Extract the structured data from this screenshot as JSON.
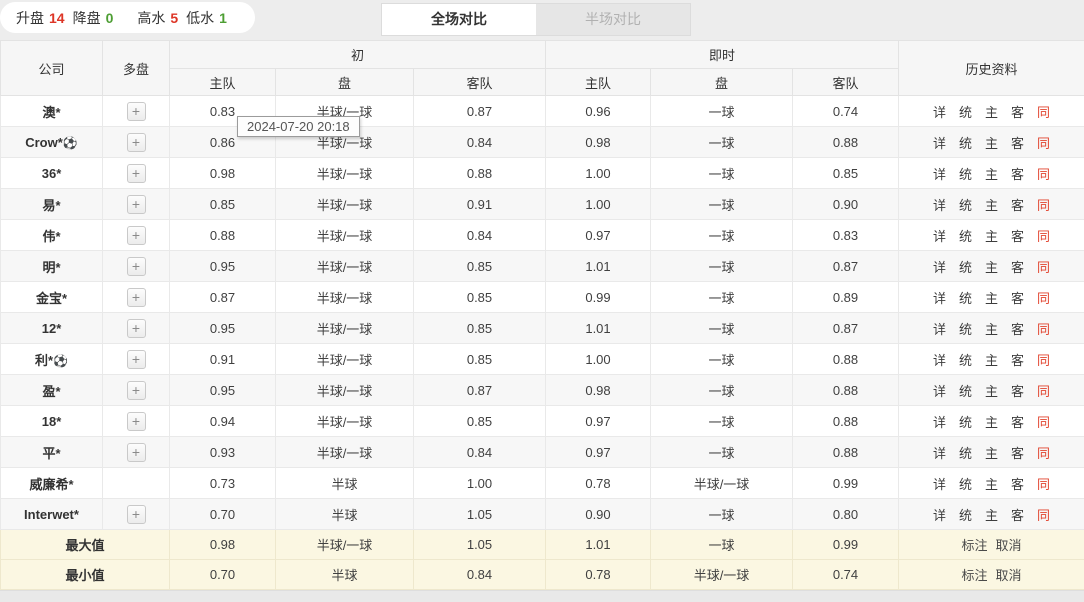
{
  "summary_bar": {
    "items": [
      {
        "label": "升盘",
        "value": "14",
        "color": "#dd3526"
      },
      {
        "label": "降盘",
        "value": "0",
        "color": "#4d9e33"
      },
      {
        "label": "高水",
        "value": "5",
        "color": "#dd3526"
      },
      {
        "label": "低水",
        "value": "1",
        "color": "#4d9e33"
      }
    ]
  },
  "tabs": {
    "full": {
      "label": "全场对比",
      "active": true
    },
    "half": {
      "label": "半场对比",
      "active": false
    }
  },
  "tooltip": {
    "text": "2024-07-20 20:18"
  },
  "table": {
    "headers": {
      "company": "公司",
      "multi": "多盘",
      "initial_group": "初",
      "live_group": "即时",
      "home": "主队",
      "handicap": "盘",
      "away": "客队",
      "history": "历史资料"
    },
    "history_links": [
      "详",
      "统",
      "主",
      "客",
      "同"
    ],
    "ball_icon": "⚽",
    "plus_label": "+",
    "rows": [
      {
        "company": "澳*",
        "ball": false,
        "plus": true,
        "init_home": "0.83",
        "init_hcp": "半球/一球",
        "init_away": "0.87",
        "live_home": "0.96",
        "live_hcp": "一球",
        "live_away": "0.74"
      },
      {
        "company": "Crow*",
        "ball": true,
        "plus": true,
        "init_home": "0.86",
        "init_hcp": "半球/一球",
        "init_away": "0.84",
        "live_home": "0.98",
        "live_hcp": "一球",
        "live_away": "0.88"
      },
      {
        "company": "36*",
        "ball": false,
        "plus": true,
        "init_home": "0.98",
        "init_hcp": "半球/一球",
        "init_away": "0.88",
        "live_home": "1.00",
        "live_hcp": "一球",
        "live_away": "0.85"
      },
      {
        "company": "易*",
        "ball": false,
        "plus": true,
        "init_home": "0.85",
        "init_hcp": "半球/一球",
        "init_away": "0.91",
        "live_home": "1.00",
        "live_hcp": "一球",
        "live_away": "0.90"
      },
      {
        "company": "伟*",
        "ball": false,
        "plus": true,
        "init_home": "0.88",
        "init_hcp": "半球/一球",
        "init_away": "0.84",
        "live_home": "0.97",
        "live_hcp": "一球",
        "live_away": "0.83"
      },
      {
        "company": "明*",
        "ball": false,
        "plus": true,
        "init_home": "0.95",
        "init_hcp": "半球/一球",
        "init_away": "0.85",
        "live_home": "1.01",
        "live_hcp": "一球",
        "live_away": "0.87"
      },
      {
        "company": "金宝*",
        "ball": false,
        "plus": true,
        "init_home": "0.87",
        "init_hcp": "半球/一球",
        "init_away": "0.85",
        "live_home": "0.99",
        "live_hcp": "一球",
        "live_away": "0.89"
      },
      {
        "company": "12*",
        "ball": false,
        "plus": true,
        "init_home": "0.95",
        "init_hcp": "半球/一球",
        "init_away": "0.85",
        "live_home": "1.01",
        "live_hcp": "一球",
        "live_away": "0.87"
      },
      {
        "company": "利*",
        "ball": true,
        "plus": true,
        "init_home": "0.91",
        "init_hcp": "半球/一球",
        "init_away": "0.85",
        "live_home": "1.00",
        "live_hcp": "一球",
        "live_away": "0.88"
      },
      {
        "company": "盈*",
        "ball": false,
        "plus": true,
        "init_home": "0.95",
        "init_hcp": "半球/一球",
        "init_away": "0.87",
        "live_home": "0.98",
        "live_hcp": "一球",
        "live_away": "0.88"
      },
      {
        "company": "18*",
        "ball": false,
        "plus": true,
        "init_home": "0.94",
        "init_hcp": "半球/一球",
        "init_away": "0.85",
        "live_home": "0.97",
        "live_hcp": "一球",
        "live_away": "0.88"
      },
      {
        "company": "平*",
        "ball": false,
        "plus": true,
        "init_home": "0.93",
        "init_hcp": "半球/一球",
        "init_away": "0.84",
        "live_home": "0.97",
        "live_hcp": "一球",
        "live_away": "0.88"
      },
      {
        "company": "威廉希*",
        "ball": false,
        "plus": false,
        "init_home": "0.73",
        "init_hcp": "半球",
        "init_away": "1.00",
        "live_home": "0.78",
        "live_hcp": "半球/一球",
        "live_away": "0.99"
      },
      {
        "company": "Interwet*",
        "ball": false,
        "plus": true,
        "init_home": "0.70",
        "init_hcp": "半球",
        "init_away": "1.05",
        "live_home": "0.90",
        "live_hcp": "一球",
        "live_away": "0.80"
      }
    ],
    "summary_rows": [
      {
        "label": "最大值",
        "init_home": "0.98",
        "init_hcp": "半球/一球",
        "init_away": "1.05",
        "live_home": "1.01",
        "live_hcp": "一球",
        "live_away": "0.99",
        "actions": [
          "标注",
          "取消"
        ]
      },
      {
        "label": "最小值",
        "init_home": "0.70",
        "init_hcp": "半球",
        "init_away": "0.84",
        "live_home": "0.78",
        "live_hcp": "半球/一球",
        "live_away": "0.74",
        "actions": [
          "标注",
          "取消"
        ]
      }
    ]
  }
}
